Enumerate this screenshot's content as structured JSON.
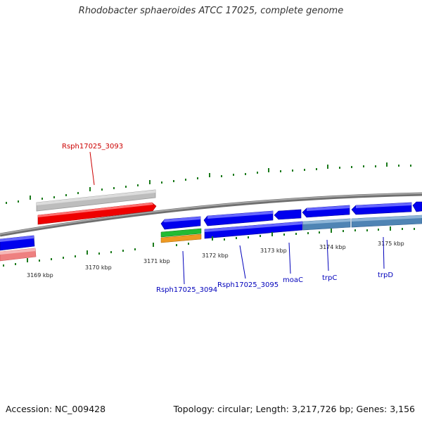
{
  "title": "Rhodobacter sphaeroides ATCC 17025, complete genome",
  "footer": {
    "accession": "Accession: NC_009428",
    "summary": "Topology: circular; Length: 3,217,726 bp; Genes: 3,156"
  },
  "colors": {
    "backbone": "#8c8c8c",
    "gene_blue": "#0000ee",
    "gene_steel": "#4f84b4",
    "gene_red": "#ee0000",
    "gene_grey": "#b8b8b8",
    "gene_pink": "#ee8080",
    "gene_green": "#22bb33",
    "gene_orange": "#ee9922",
    "tick_green": "#1b7a1b",
    "label_blue": "#0000bb",
    "label_red": "#cc0000"
  },
  "ticks": [
    {
      "label": "3169 kbp"
    },
    {
      "label": "3170 kbp"
    },
    {
      "label": "3171 kbp"
    },
    {
      "label": "3172 kbp"
    },
    {
      "label": "3173 kbp"
    },
    {
      "label": "3174 kbp"
    },
    {
      "label": "3175 kbp"
    }
  ],
  "gene_labels": [
    {
      "text": "Rsph17025_3093",
      "color": "red"
    },
    {
      "text": "Rsph17025_3094",
      "color": "blue"
    },
    {
      "text": "Rsph17025_3095",
      "color": "blue"
    },
    {
      "text": "moaC",
      "color": "blue"
    },
    {
      "text": "trpC",
      "color": "blue"
    },
    {
      "text": "trpD",
      "color": "blue"
    }
  ]
}
